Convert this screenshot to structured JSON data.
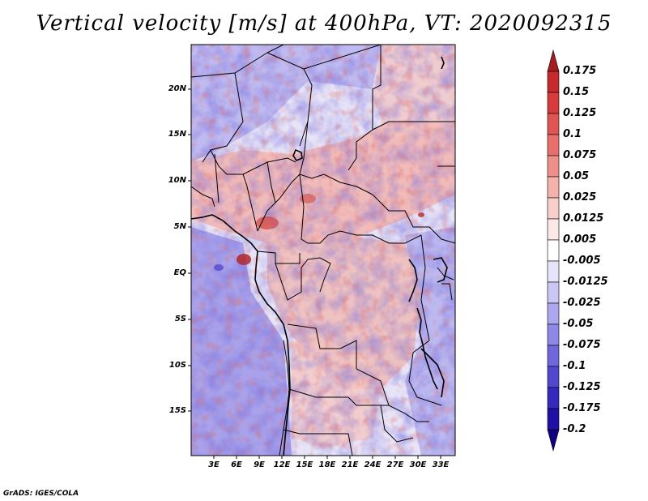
{
  "title": "Vertical velocity [m/s] at 400hPa, VT: 2020092315",
  "credit": "GrADS: IGES/COLA",
  "lat_labels": [
    "20N",
    "15N",
    "10N",
    "5N",
    "EQ",
    "5S",
    "10S",
    "15S"
  ],
  "lon_labels": [
    "3E",
    "6E",
    "9E",
    "12E",
    "15E",
    "18E",
    "21E",
    "24E",
    "27E",
    "30E",
    "33E"
  ],
  "colorbar": {
    "labels": [
      "0.175",
      "0.15",
      "0.125",
      "0.1",
      "0.075",
      "0.05",
      "0.025",
      "0.0125",
      "0.005",
      "-0.005",
      "-0.0125",
      "-0.025",
      "-0.05",
      "-0.075",
      "-0.1",
      "-0.125",
      "-0.175",
      "-0.2"
    ],
    "colors": [
      "#a61c20",
      "#c72a2c",
      "#d63c3c",
      "#e05454",
      "#e8706c",
      "#ef8f89",
      "#f5b1ab",
      "#f9cfcb",
      "#fce9e7",
      "#ffffff",
      "#e6e4fb",
      "#cac6f5",
      "#ada8ee",
      "#8f88e6",
      "#7067dd",
      "#5248cf",
      "#3529bd",
      "#2010a5",
      "#100080"
    ]
  },
  "colors": {
    "land_bg_pink": "#f3c4c0",
    "land_bg_blue": "#c4c2f4"
  }
}
